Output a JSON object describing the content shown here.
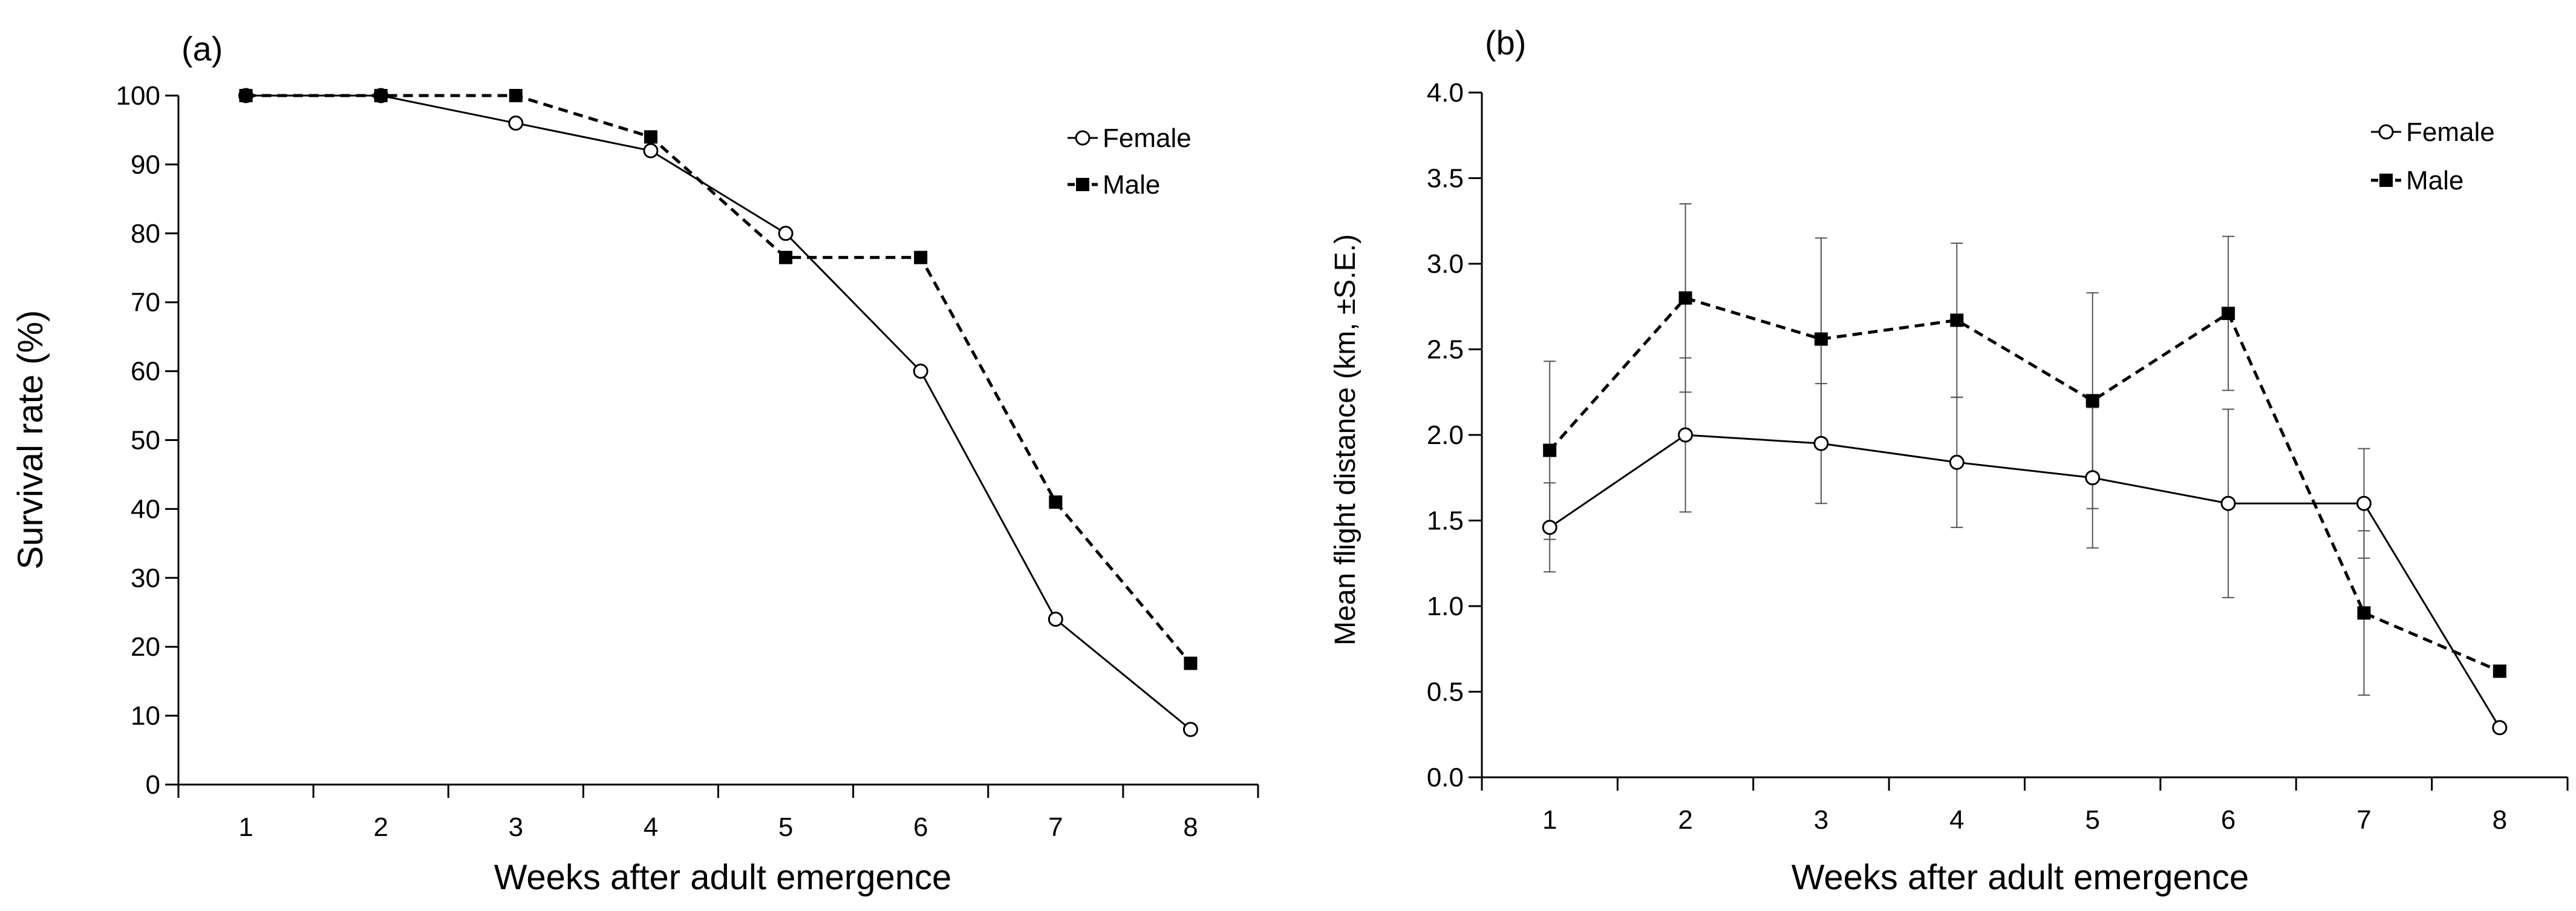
{
  "chart_data": [
    {
      "type": "line",
      "panel_label": "(a)",
      "xlabel": "Weeks after adult emergence",
      "ylabel": "Survival rate (%)",
      "x": [
        1,
        2,
        3,
        4,
        5,
        6,
        7,
        8
      ],
      "xlim": [
        0.5,
        8.5
      ],
      "ylim": [
        0,
        100
      ],
      "yticks": [
        0,
        10,
        20,
        30,
        40,
        50,
        60,
        70,
        80,
        90,
        100
      ],
      "grid": false,
      "legend_position": "top-right",
      "series": [
        {
          "name": "Female",
          "line_style": "solid",
          "marker": "open-circle",
          "values": [
            100,
            100,
            96,
            92,
            80,
            60,
            24,
            8
          ]
        },
        {
          "name": "Male",
          "line_style": "dashed",
          "marker": "filled-square",
          "values": [
            100,
            100,
            100,
            94,
            76.5,
            76.5,
            41,
            17.6
          ]
        }
      ]
    },
    {
      "type": "line",
      "panel_label": "(b)",
      "xlabel": "Weeks after adult emergence",
      "ylabel": "Mean flight distance (km, ±S.E.)",
      "x": [
        1,
        2,
        3,
        4,
        5,
        6,
        7,
        8
      ],
      "xlim": [
        0.5,
        8.5
      ],
      "ylim": [
        0,
        4
      ],
      "yticks": [
        "0.0",
        "0.5",
        "1.0",
        "1.5",
        "2.0",
        "2.5",
        "3.0",
        "3.5",
        "4.0"
      ],
      "grid": false,
      "legend_position": "top-right",
      "series": [
        {
          "name": "Female",
          "line_style": "solid",
          "marker": "open-circle",
          "values": [
            1.46,
            2.0,
            1.95,
            1.84,
            1.75,
            1.6,
            1.6,
            0.29
          ],
          "errors": [
            0.26,
            0.45,
            0.35,
            0.38,
            0.41,
            0.55,
            0.32,
            null
          ]
        },
        {
          "name": "Male",
          "line_style": "dashed",
          "marker": "filled-square",
          "values": [
            1.91,
            2.8,
            2.56,
            2.67,
            2.2,
            2.71,
            0.96,
            0.62
          ],
          "errors": [
            0.52,
            0.55,
            0.59,
            0.45,
            0.63,
            0.45,
            0.48,
            null
          ]
        }
      ]
    }
  ]
}
